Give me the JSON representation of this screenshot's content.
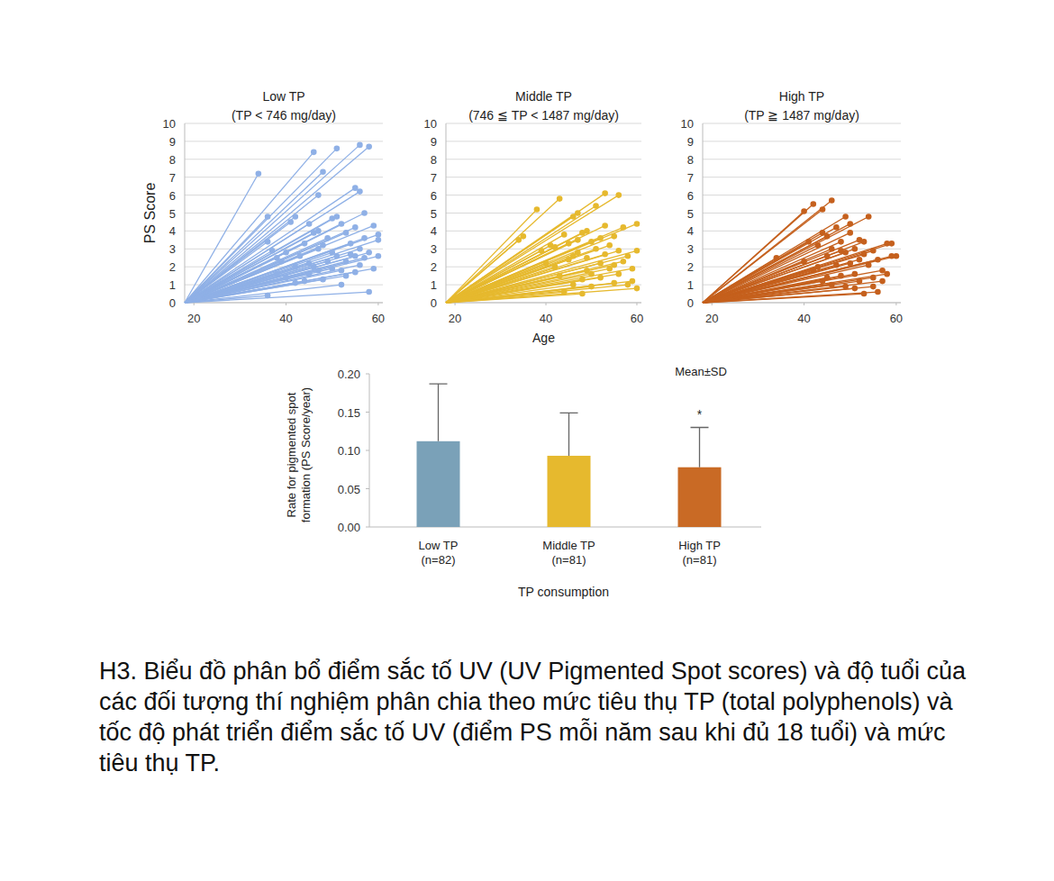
{
  "chart_data": [
    {
      "type": "scatter",
      "title": "Low TP",
      "subtitle": "(TP < 746 mg/day)",
      "y_label": "PS Score",
      "origin": [
        18,
        0
      ],
      "color": "#8fb0e6",
      "marker": "circle",
      "grid": true,
      "xlim": [
        18,
        61
      ],
      "xticks": [
        20,
        40,
        60
      ],
      "ylim": [
        0,
        10
      ],
      "yticks": [
        0,
        1,
        2,
        3,
        4,
        5,
        6,
        7,
        8,
        9,
        10
      ],
      "x": [
        34,
        36,
        36,
        36,
        37,
        38,
        39,
        40,
        41,
        42,
        42,
        43,
        44,
        44,
        45,
        45,
        46,
        46,
        46,
        47,
        47,
        47,
        47,
        48,
        48,
        48,
        49,
        49,
        50,
        50,
        51,
        51,
        51,
        52,
        52,
        52,
        53,
        53,
        54,
        54,
        55,
        55,
        55,
        56,
        56,
        56,
        56,
        57,
        57,
        57,
        58,
        58,
        58,
        59,
        59,
        60,
        60,
        60,
        55,
        53,
        50,
        45,
        42,
        40,
        38
      ],
      "values": [
        7.2,
        4.8,
        3.4,
        0.4,
        2.9,
        2.5,
        2.3,
        2.8,
        4.5,
        4.8,
        1.1,
        2.6,
        3.3,
        1.2,
        4.4,
        2.2,
        8.4,
        3.9,
        2.0,
        6.0,
        4.0,
        3.0,
        1.8,
        7.3,
        3.2,
        1.3,
        3.6,
        2.3,
        4.7,
        2.8,
        8.6,
        4.8,
        2.6,
        4.4,
        1.8,
        1.0,
        3.9,
        2.3,
        3.3,
        2.7,
        6.4,
        2.6,
        1.7,
        8.8,
        6.2,
        3.0,
        2.1,
        5.0,
        3.6,
        2.5,
        8.7,
        2.8,
        0.6,
        4.3,
        1.9,
        3.8,
        3.5,
        2.6,
        4.2,
        1.5,
        1.9,
        1.6,
        2.0,
        1.4,
        1.6
      ]
    },
    {
      "type": "scatter",
      "title": "Middle TP",
      "subtitle": "(746 ≦ TP < 1487 mg/day)",
      "x_label": "Age",
      "origin": [
        18,
        0
      ],
      "color": "#e6b92e",
      "marker": "circle",
      "grid": true,
      "xlim": [
        18,
        61
      ],
      "xticks": [
        20,
        40,
        60
      ],
      "ylim": [
        0,
        10
      ],
      "yticks": [
        0,
        1,
        2,
        3,
        4,
        5,
        6,
        7,
        8,
        9,
        10
      ],
      "x": [
        34,
        35,
        38,
        39,
        40,
        41,
        42,
        43,
        43,
        44,
        44,
        45,
        45,
        46,
        46,
        47,
        47,
        47,
        48,
        48,
        49,
        49,
        49,
        50,
        50,
        51,
        51,
        52,
        52,
        52,
        53,
        53,
        53,
        54,
        54,
        55,
        55,
        56,
        56,
        56,
        57,
        57,
        58,
        58,
        59,
        59,
        60,
        60,
        60,
        55,
        50,
        46,
        42,
        48
      ],
      "values": [
        3.5,
        3.7,
        5.2,
        2.9,
        2.2,
        3.2,
        2.0,
        5.8,
        1.5,
        3.8,
        0.6,
        3.3,
        2.4,
        4.8,
        1.0,
        5.0,
        3.5,
        2.8,
        3.9,
        1.3,
        4.0,
        2.5,
        1.8,
        3.4,
        0.9,
        5.4,
        3.0,
        3.6,
        2.2,
        1.4,
        6.1,
        4.3,
        2.7,
        3.2,
        1.9,
        3.7,
        1.1,
        6.0,
        2.9,
        1.6,
        4.2,
        2.3,
        2.6,
        1.0,
        1.9,
        1.2,
        4.4,
        2.9,
        0.8,
        2.1,
        1.6,
        2.6,
        3.1,
        0.5
      ]
    },
    {
      "type": "scatter",
      "title": "High TP",
      "subtitle": "(TP ≧ 1487 mg/day)",
      "origin": [
        18,
        0
      ],
      "color": "#c5601d",
      "marker": "circle",
      "grid": true,
      "xlim": [
        18,
        61
      ],
      "xticks": [
        20,
        40,
        60
      ],
      "ylim": [
        0,
        10
      ],
      "yticks": [
        0,
        1,
        2,
        3,
        4,
        5,
        6,
        7,
        8,
        9,
        10
      ],
      "x": [
        34,
        40,
        40,
        41,
        42,
        42,
        43,
        44,
        44,
        44,
        45,
        45,
        46,
        46,
        46,
        47,
        47,
        48,
        48,
        49,
        49,
        49,
        50,
        50,
        50,
        51,
        51,
        52,
        52,
        52,
        53,
        53,
        53,
        54,
        54,
        55,
        55,
        56,
        56,
        57,
        57,
        58,
        58,
        59,
        59,
        60,
        55,
        51,
        48,
        45,
        43
      ],
      "values": [
        2.5,
        5.1,
        2.3,
        3.4,
        5.5,
        1.8,
        3.2,
        5.2,
        3.9,
        1.2,
        3.7,
        2.6,
        5.7,
        3.0,
        1.0,
        4.2,
        2.1,
        3.4,
        1.5,
        4.8,
        2.8,
        0.9,
        3.9,
        2.2,
        4.4,
        3.0,
        1.6,
        3.5,
        2.4,
        1.2,
        3.4,
        2.7,
        0.5,
        4.8,
        2.1,
        2.9,
        1.4,
        2.4,
        0.6,
        1.8,
        1.2,
        3.3,
        1.6,
        3.3,
        2.6,
        2.6,
        0.9,
        0.8,
        2.9,
        1.4,
        2.0
      ]
    },
    {
      "type": "bar",
      "x_label": "TP consumption",
      "y_label": "Rate for pigmented spot\nformation (PS Score/year)",
      "categories": [
        "Low TP\n(n=82)",
        "Middle TP\n(n=81)",
        "High TP\n(n=81)"
      ],
      "values": [
        0.112,
        0.093,
        0.078
      ],
      "errors": [
        0.075,
        0.056,
        0.052
      ],
      "colors": [
        "#7aa1b8",
        "#e6b92e",
        "#c96a25"
      ],
      "ylim": [
        0,
        0.2
      ],
      "yticks": [
        {
          "value": 0,
          "label": "0.00"
        },
        {
          "value": 0.05,
          "label": "0.05"
        },
        {
          "value": 0.1,
          "label": "0.10"
        },
        {
          "value": 0.15,
          "label": "0.15"
        },
        {
          "value": 0.2,
          "label": "0.20"
        }
      ],
      "annotations": [
        {
          "text": "Mean±SD"
        },
        {
          "text": "*",
          "index": 2
        }
      ]
    }
  ],
  "caption": "H3. Biểu đồ phân bổ điểm sắc tố UV (UV Pigmented Spot scores) và độ tuổi của các đối tượng thí nghiệm phân chia theo mức tiêu thụ TP (total polyphenols) và tốc độ phát triển điểm sắc tố UV (điểm PS mỗi năm sau khi đủ 18 tuổi) và mức tiêu thụ TP."
}
